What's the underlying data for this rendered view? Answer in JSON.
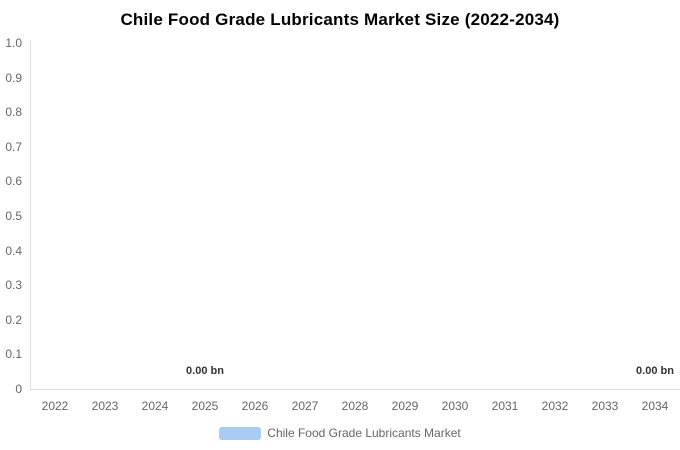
{
  "title": "Chile Food Grade Lubricants Market Size (2022-2034)",
  "chart_data": {
    "type": "bar",
    "categories": [
      "2022",
      "2023",
      "2024",
      "2025",
      "2026",
      "2027",
      "2028",
      "2029",
      "2030",
      "2031",
      "2032",
      "2033",
      "2034"
    ],
    "series": [
      {
        "name": "Chile Food Grade Lubricants Market",
        "values": [
          0,
          0,
          0,
          0,
          0,
          0,
          0,
          0,
          0,
          0,
          0,
          0,
          0
        ],
        "unit": "bn",
        "color": "#a8cbf8"
      }
    ],
    "title": "Chile Food Grade Lubricants Market Size (2022-2034)",
    "xlabel": "",
    "ylabel": "",
    "ylim": [
      0,
      1.0
    ],
    "y_ticks": [
      "1.0",
      "0.9",
      "0.8",
      "0.7",
      "0.6",
      "0.5",
      "0.4",
      "0.3",
      "0.2",
      "0.1",
      "0"
    ],
    "grid": false,
    "legend_position": "bottom",
    "data_labels": [
      {
        "category": "2025",
        "text": "0.00 bn"
      },
      {
        "category": "2034",
        "text": "0.00 bn"
      }
    ]
  },
  "legend": {
    "label": "Chile Food Grade Lubricants Market"
  },
  "colors": {
    "series": "#a8cbf8",
    "axis_line": "#e0e0e0",
    "tick_label": "#666666",
    "title": "#000000",
    "data_label": "#333333",
    "background": "#ffffff"
  }
}
